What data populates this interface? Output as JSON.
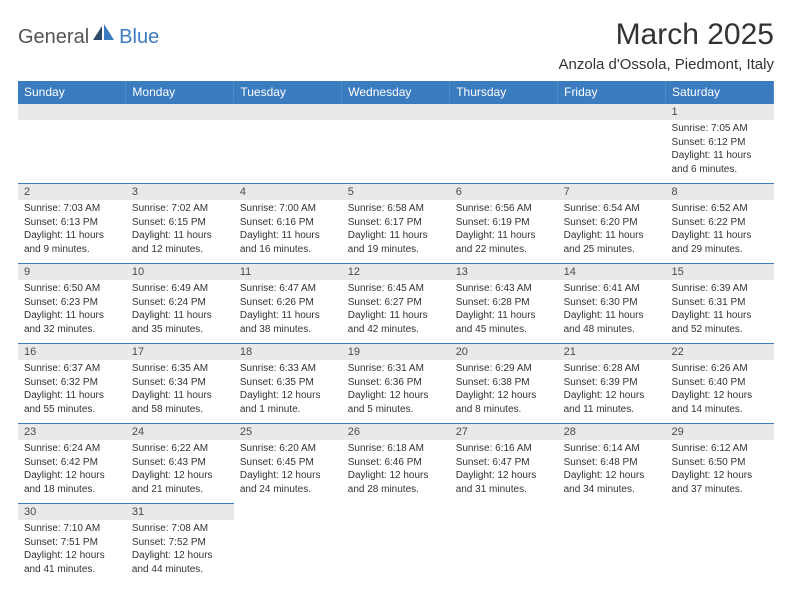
{
  "logo": {
    "part1": "General",
    "part2": "Blue"
  },
  "title": "March 2025",
  "location": "Anzola d'Ossola, Piedmont, Italy",
  "colors": {
    "header_bg": "#3b7bbf",
    "header_fg": "#ffffff",
    "daynum_bg": "#e9e9e9",
    "row_border": "#3b7bbf",
    "logo_blue": "#3b7bbf",
    "logo_gray": "#555555"
  },
  "weekdays": [
    "Sunday",
    "Monday",
    "Tuesday",
    "Wednesday",
    "Thursday",
    "Friday",
    "Saturday"
  ],
  "lead_blanks": 6,
  "days": [
    {
      "n": 1,
      "sunrise": "7:05 AM",
      "sunset": "6:12 PM",
      "d_h": 11,
      "d_m": 6
    },
    {
      "n": 2,
      "sunrise": "7:03 AM",
      "sunset": "6:13 PM",
      "d_h": 11,
      "d_m": 9
    },
    {
      "n": 3,
      "sunrise": "7:02 AM",
      "sunset": "6:15 PM",
      "d_h": 11,
      "d_m": 12
    },
    {
      "n": 4,
      "sunrise": "7:00 AM",
      "sunset": "6:16 PM",
      "d_h": 11,
      "d_m": 16
    },
    {
      "n": 5,
      "sunrise": "6:58 AM",
      "sunset": "6:17 PM",
      "d_h": 11,
      "d_m": 19
    },
    {
      "n": 6,
      "sunrise": "6:56 AM",
      "sunset": "6:19 PM",
      "d_h": 11,
      "d_m": 22
    },
    {
      "n": 7,
      "sunrise": "6:54 AM",
      "sunset": "6:20 PM",
      "d_h": 11,
      "d_m": 25
    },
    {
      "n": 8,
      "sunrise": "6:52 AM",
      "sunset": "6:22 PM",
      "d_h": 11,
      "d_m": 29
    },
    {
      "n": 9,
      "sunrise": "6:50 AM",
      "sunset": "6:23 PM",
      "d_h": 11,
      "d_m": 32
    },
    {
      "n": 10,
      "sunrise": "6:49 AM",
      "sunset": "6:24 PM",
      "d_h": 11,
      "d_m": 35
    },
    {
      "n": 11,
      "sunrise": "6:47 AM",
      "sunset": "6:26 PM",
      "d_h": 11,
      "d_m": 38
    },
    {
      "n": 12,
      "sunrise": "6:45 AM",
      "sunset": "6:27 PM",
      "d_h": 11,
      "d_m": 42
    },
    {
      "n": 13,
      "sunrise": "6:43 AM",
      "sunset": "6:28 PM",
      "d_h": 11,
      "d_m": 45
    },
    {
      "n": 14,
      "sunrise": "6:41 AM",
      "sunset": "6:30 PM",
      "d_h": 11,
      "d_m": 48
    },
    {
      "n": 15,
      "sunrise": "6:39 AM",
      "sunset": "6:31 PM",
      "d_h": 11,
      "d_m": 52
    },
    {
      "n": 16,
      "sunrise": "6:37 AM",
      "sunset": "6:32 PM",
      "d_h": 11,
      "d_m": 55
    },
    {
      "n": 17,
      "sunrise": "6:35 AM",
      "sunset": "6:34 PM",
      "d_h": 11,
      "d_m": 58
    },
    {
      "n": 18,
      "sunrise": "6:33 AM",
      "sunset": "6:35 PM",
      "d_h": 12,
      "d_m": 1
    },
    {
      "n": 19,
      "sunrise": "6:31 AM",
      "sunset": "6:36 PM",
      "d_h": 12,
      "d_m": 5
    },
    {
      "n": 20,
      "sunrise": "6:29 AM",
      "sunset": "6:38 PM",
      "d_h": 12,
      "d_m": 8
    },
    {
      "n": 21,
      "sunrise": "6:28 AM",
      "sunset": "6:39 PM",
      "d_h": 12,
      "d_m": 11
    },
    {
      "n": 22,
      "sunrise": "6:26 AM",
      "sunset": "6:40 PM",
      "d_h": 12,
      "d_m": 14
    },
    {
      "n": 23,
      "sunrise": "6:24 AM",
      "sunset": "6:42 PM",
      "d_h": 12,
      "d_m": 18
    },
    {
      "n": 24,
      "sunrise": "6:22 AM",
      "sunset": "6:43 PM",
      "d_h": 12,
      "d_m": 21
    },
    {
      "n": 25,
      "sunrise": "6:20 AM",
      "sunset": "6:45 PM",
      "d_h": 12,
      "d_m": 24
    },
    {
      "n": 26,
      "sunrise": "6:18 AM",
      "sunset": "6:46 PM",
      "d_h": 12,
      "d_m": 28
    },
    {
      "n": 27,
      "sunrise": "6:16 AM",
      "sunset": "6:47 PM",
      "d_h": 12,
      "d_m": 31
    },
    {
      "n": 28,
      "sunrise": "6:14 AM",
      "sunset": "6:48 PM",
      "d_h": 12,
      "d_m": 34
    },
    {
      "n": 29,
      "sunrise": "6:12 AM",
      "sunset": "6:50 PM",
      "d_h": 12,
      "d_m": 37
    },
    {
      "n": 30,
      "sunrise": "7:10 AM",
      "sunset": "7:51 PM",
      "d_h": 12,
      "d_m": 41
    },
    {
      "n": 31,
      "sunrise": "7:08 AM",
      "sunset": "7:52 PM",
      "d_h": 12,
      "d_m": 44
    }
  ],
  "labels": {
    "sunrise": "Sunrise:",
    "sunset": "Sunset:",
    "daylight": "Daylight:",
    "hours": "hours",
    "and": "and",
    "minute_singular": "minute.",
    "minute_plural": "minutes."
  }
}
